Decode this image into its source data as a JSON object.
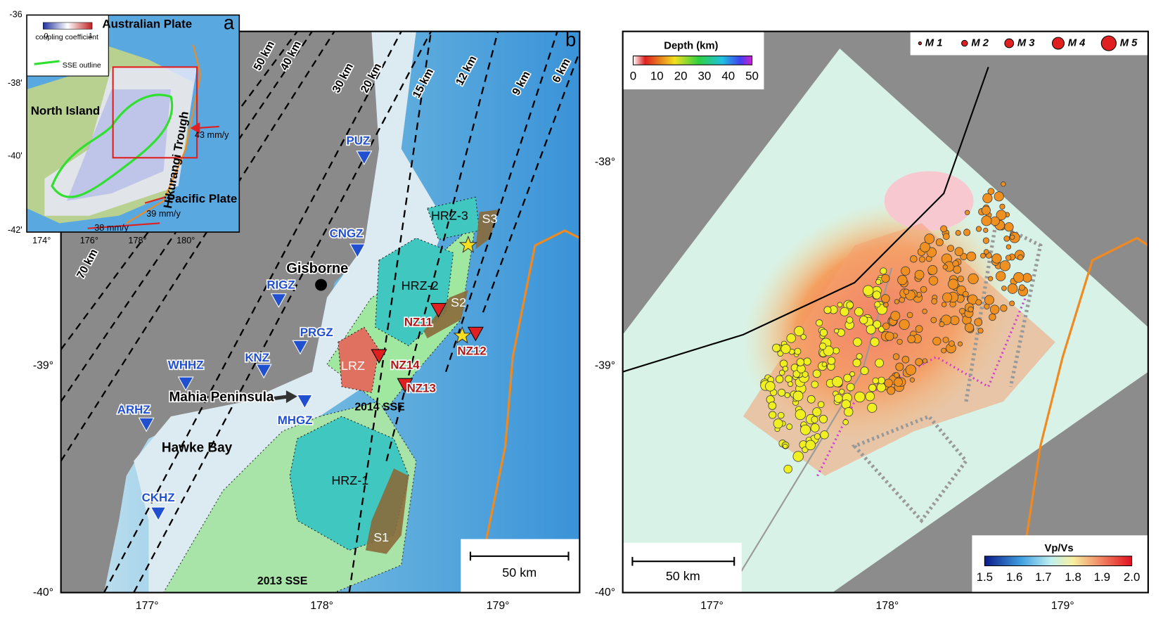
{
  "panel_a": {
    "label": "a",
    "legend_title": "coupling coefficient",
    "scale_min": "0",
    "scale_max": "1",
    "sse_outline": "SSE outline",
    "places": [
      "Australian Plate",
      "North Island",
      "Hikurangi Trough",
      "Pacific Plate"
    ],
    "rates": [
      "43 mm/y",
      "39 mm/y",
      "38 mm/y"
    ],
    "lat_ticks": [
      "-36",
      "-38'",
      "-40'",
      "-42'"
    ],
    "lon_ticks": [
      "174°",
      "176°",
      "178°",
      "180°"
    ]
  },
  "panel_b": {
    "label": "b",
    "depth_contours": [
      "70 km",
      "50 km",
      "40 km",
      "30 km",
      "20 km",
      "15 km",
      "12 km",
      "9 km",
      "6 km"
    ],
    "stations": [
      "PUZ",
      "CNGZ",
      "RIGZ",
      "PRGZ",
      "KNZ",
      "WHHZ",
      "ARHZ",
      "MHGZ",
      "CKHZ"
    ],
    "obs": [
      "NZ11",
      "NZ12",
      "NZ14",
      "NZ13"
    ],
    "zones": [
      "HRZ-3",
      "HRZ-2",
      "LRZ",
      "HRZ-1",
      "S1",
      "S2",
      "S3"
    ],
    "places": [
      "Gisborne",
      "Mahia Peninsula",
      "Hawke Bay",
      "2014 SSE",
      "2013 SSE"
    ],
    "scale_bar": "50 km",
    "lat_ticks": [
      "-39°",
      "-40°"
    ],
    "lon_ticks": [
      "177°",
      "178°",
      "179°"
    ]
  },
  "panel_c": {
    "depth_legend": {
      "title": "Depth (km)",
      "ticks": [
        "0",
        "10",
        "20",
        "30",
        "40",
        "50"
      ]
    },
    "magnitudes": [
      "M 1",
      "M 2",
      "M 3",
      "M 4",
      "M 5"
    ],
    "vpvs": {
      "title": "Vp/Vs",
      "ticks": [
        "1.5",
        "1.6",
        "1.7",
        "1.8",
        "1.9",
        "2.0"
      ]
    },
    "scale_bar": "50 km",
    "lat_ticks": [
      "-38°",
      "-39°",
      "-40°"
    ],
    "lon_ticks": [
      "177°",
      "178°",
      "179°"
    ]
  }
}
